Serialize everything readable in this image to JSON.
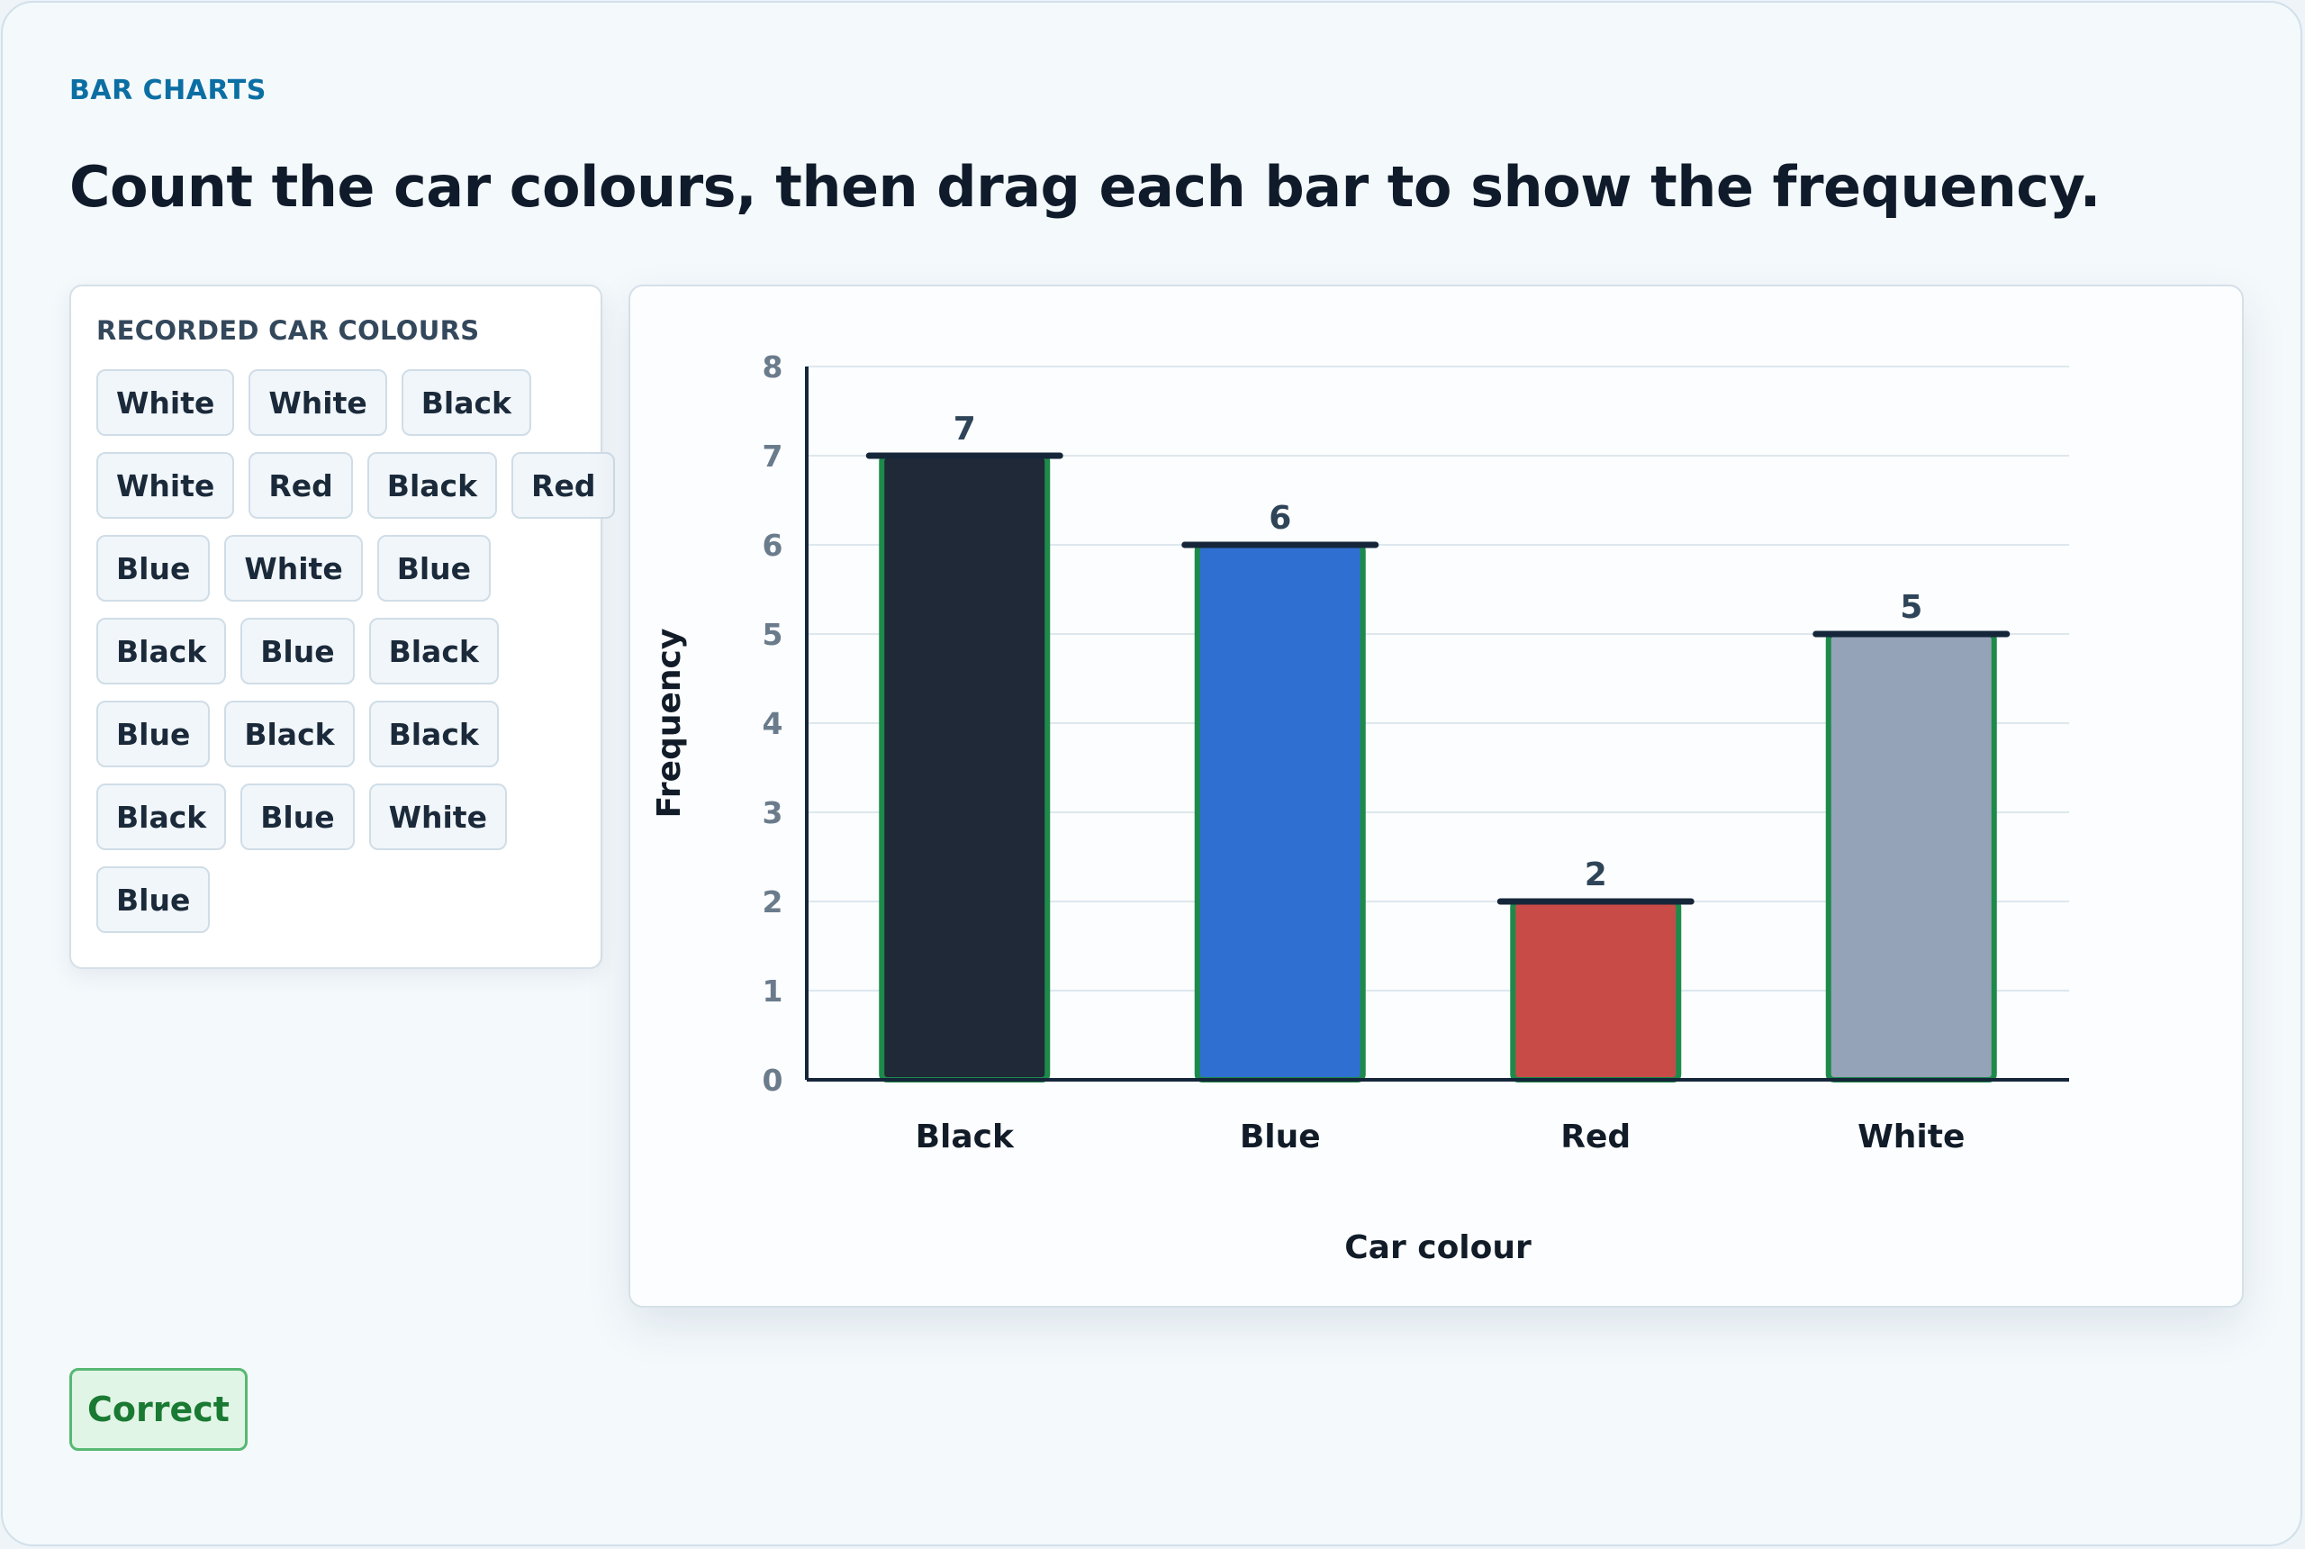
{
  "header": {
    "eyebrow": "BAR CHARTS",
    "prompt": "Count the car colours, then drag each bar to show the frequency."
  },
  "recorded": {
    "title": "RECORDED CAR COLOURS",
    "rows": [
      [
        "White",
        "White",
        "Black"
      ],
      [
        "White",
        "Red",
        "Black",
        "Red"
      ],
      [
        "Blue",
        "White",
        "Blue"
      ],
      [
        "Black",
        "Blue",
        "Black"
      ],
      [
        "Blue",
        "Black",
        "Black"
      ],
      [
        "Black",
        "Blue",
        "White"
      ],
      [
        "Blue"
      ]
    ]
  },
  "chart_data": {
    "type": "bar",
    "categories": [
      "Black",
      "Blue",
      "Red",
      "White"
    ],
    "values": [
      7,
      6,
      2,
      5
    ],
    "xlabel": "Car colour",
    "ylabel": "Frequency",
    "ylim": [
      0,
      8
    ],
    "yticks": [
      0,
      1,
      2,
      3,
      4,
      5,
      6,
      7,
      8
    ],
    "grid": true,
    "colors": [
      "#1f2937",
      "#2f6fd1",
      "#c84b48",
      "#94a3b8"
    ],
    "bar_outline": "#1e8a4a",
    "handle_color": "#15263a"
  },
  "status": {
    "label": "Correct"
  }
}
